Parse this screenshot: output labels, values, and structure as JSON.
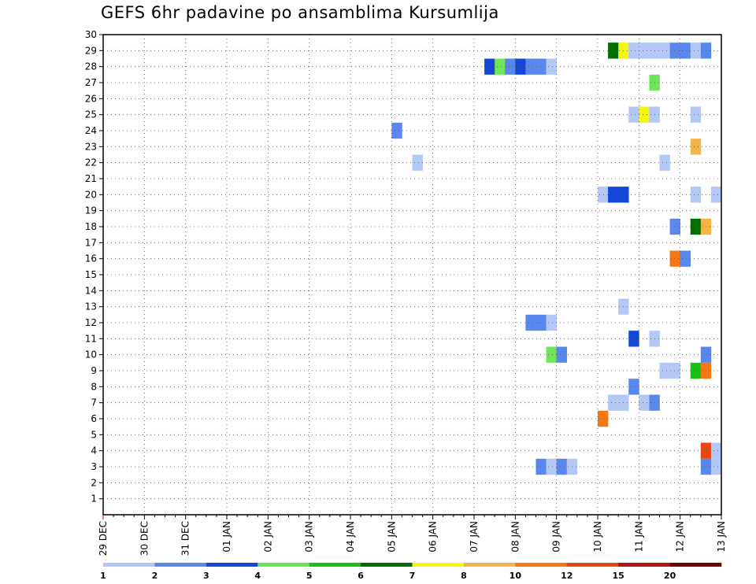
{
  "chart_data": {
    "type": "heatmap",
    "title": "GEFS 6hr padavine po ansamblima Kursumlija",
    "xlabel": "",
    "ylabel": "",
    "x_ticks": [
      "29 DEC",
      "30 DEC",
      "31 DEC",
      "01 JAN",
      "02 JAN",
      "03 JAN",
      "04 JAN",
      "05 JAN",
      "06 JAN",
      "07 JAN",
      "08 JAN",
      "09 JAN",
      "10 JAN",
      "11 JAN",
      "12 JAN",
      "13 JAN"
    ],
    "x_range": [
      0,
      15
    ],
    "y_ticks": [
      1,
      2,
      3,
      4,
      5,
      6,
      7,
      8,
      9,
      10,
      11,
      12,
      13,
      14,
      15,
      16,
      17,
      18,
      19,
      20,
      21,
      22,
      23,
      24,
      25,
      26,
      27,
      28,
      29,
      30
    ],
    "y_range": [
      0,
      30
    ],
    "grid": true,
    "legend_placement": "bottom",
    "legend": {
      "labels": [
        "1",
        "2",
        "3",
        "4",
        "5",
        "6",
        "7",
        "8",
        "10",
        "12",
        "15",
        "20"
      ],
      "colors": [
        "#b4c8f5",
        "#5a87eb",
        "#1446d7",
        "#6ee65a",
        "#14c314",
        "#006e00",
        "#f5f514",
        "#f5b446",
        "#f57814",
        "#e64614",
        "#b41414",
        "#6e0000"
      ]
    },
    "cells": [
      {
        "member": 29,
        "x": 12.25,
        "class": 6
      },
      {
        "member": 29,
        "x": 12.5,
        "class": 7
      },
      {
        "member": 29,
        "x": 12.75,
        "class": 1
      },
      {
        "member": 29,
        "x": 13.0,
        "class": 1
      },
      {
        "member": 29,
        "x": 13.25,
        "class": 1
      },
      {
        "member": 29,
        "x": 13.5,
        "class": 1
      },
      {
        "member": 29,
        "x": 13.75,
        "class": 2
      },
      {
        "member": 29,
        "x": 14.0,
        "class": 2
      },
      {
        "member": 29,
        "x": 14.25,
        "class": 1
      },
      {
        "member": 29,
        "x": 14.5,
        "class": 2
      },
      {
        "member": 28,
        "x": 9.25,
        "class": 3
      },
      {
        "member": 28,
        "x": 9.5,
        "class": 4
      },
      {
        "member": 28,
        "x": 9.75,
        "class": 2
      },
      {
        "member": 28,
        "x": 10.0,
        "class": 3
      },
      {
        "member": 28,
        "x": 10.25,
        "class": 2
      },
      {
        "member": 28,
        "x": 10.5,
        "class": 2
      },
      {
        "member": 28,
        "x": 10.75,
        "class": 1
      },
      {
        "member": 27,
        "x": 13.25,
        "class": 4
      },
      {
        "member": 25,
        "x": 12.75,
        "class": 1
      },
      {
        "member": 25,
        "x": 13.0,
        "class": 7
      },
      {
        "member": 25,
        "x": 13.25,
        "class": 1
      },
      {
        "member": 25,
        "x": 14.25,
        "class": 1
      },
      {
        "member": 24,
        "x": 7.0,
        "class": 2
      },
      {
        "member": 23,
        "x": 14.25,
        "class": 8
      },
      {
        "member": 22,
        "x": 7.5,
        "class": 1
      },
      {
        "member": 22,
        "x": 13.5,
        "class": 1
      },
      {
        "member": 20,
        "x": 12.0,
        "class": 1
      },
      {
        "member": 20,
        "x": 12.25,
        "class": 3
      },
      {
        "member": 20,
        "x": 12.5,
        "class": 3
      },
      {
        "member": 20,
        "x": 14.25,
        "class": 1
      },
      {
        "member": 20,
        "x": 14.75,
        "class": 1
      },
      {
        "member": 18,
        "x": 13.75,
        "class": 2
      },
      {
        "member": 18,
        "x": 14.25,
        "class": 6
      },
      {
        "member": 18,
        "x": 14.5,
        "class": 8
      },
      {
        "member": 16,
        "x": 13.75,
        "class": 9
      },
      {
        "member": 16,
        "x": 14.0,
        "class": 2
      },
      {
        "member": 13,
        "x": 12.5,
        "class": 1
      },
      {
        "member": 12,
        "x": 10.25,
        "class": 2
      },
      {
        "member": 12,
        "x": 10.5,
        "class": 2
      },
      {
        "member": 12,
        "x": 10.75,
        "class": 1
      },
      {
        "member": 11,
        "x": 12.75,
        "class": 3
      },
      {
        "member": 11,
        "x": 13.25,
        "class": 1
      },
      {
        "member": 10,
        "x": 10.75,
        "class": 4
      },
      {
        "member": 10,
        "x": 11.0,
        "class": 2
      },
      {
        "member": 10,
        "x": 14.5,
        "class": 2
      },
      {
        "member": 9,
        "x": 13.5,
        "class": 1
      },
      {
        "member": 9,
        "x": 13.75,
        "class": 1
      },
      {
        "member": 9,
        "x": 14.25,
        "class": 5
      },
      {
        "member": 9,
        "x": 14.5,
        "class": 9
      },
      {
        "member": 8,
        "x": 12.75,
        "class": 2
      },
      {
        "member": 7,
        "x": 12.25,
        "class": 1
      },
      {
        "member": 7,
        "x": 12.5,
        "class": 1
      },
      {
        "member": 7,
        "x": 13.0,
        "class": 1
      },
      {
        "member": 7,
        "x": 13.25,
        "class": 2
      },
      {
        "member": 6,
        "x": 12.0,
        "class": 9
      },
      {
        "member": 4,
        "x": 14.5,
        "class": 10
      },
      {
        "member": 4,
        "x": 14.75,
        "class": 1
      },
      {
        "member": 3,
        "x": 10.5,
        "class": 2
      },
      {
        "member": 3,
        "x": 10.75,
        "class": 1
      },
      {
        "member": 3,
        "x": 11.0,
        "class": 2
      },
      {
        "member": 3,
        "x": 11.25,
        "class": 1
      },
      {
        "member": 3,
        "x": 14.5,
        "class": 2
      },
      {
        "member": 3,
        "x": 14.75,
        "class": 1
      }
    ]
  }
}
